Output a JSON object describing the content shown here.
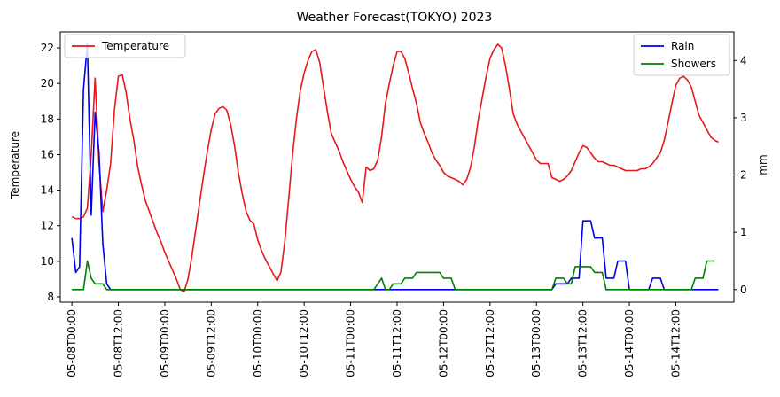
{
  "chart_data": {
    "type": "line",
    "title": "Weather Forecast(TOKYO) 2023",
    "xlabel": "",
    "ylabel_left": "Temperature",
    "ylabel_right": "mm",
    "x_ticks": [
      "05-08T00:00",
      "05-08T12:00",
      "05-09T00:00",
      "05-09T12:00",
      "05-10T00:00",
      "05-10T12:00",
      "05-11T00:00",
      "05-11T12:00",
      "05-12T00:00",
      "05-12T12:00",
      "05-13T00:00",
      "05-13T12:00",
      "05-14T00:00",
      "05-14T12:00"
    ],
    "x_tick_hours": [
      0,
      12,
      24,
      36,
      48,
      60,
      72,
      84,
      96,
      108,
      120,
      132,
      144,
      156
    ],
    "x_range_hours": [
      -3,
      171
    ],
    "left_axis": {
      "ylim": [
        7.7,
        22.9
      ],
      "ticks": [
        8,
        10,
        12,
        14,
        16,
        18,
        20,
        22
      ]
    },
    "right_axis": {
      "ylim": [
        -0.22,
        4.5
      ],
      "ticks": [
        0,
        1,
        2,
        3,
        4
      ]
    },
    "legend_left": {
      "placement": "upper-left",
      "entries": [
        "Temperature"
      ]
    },
    "legend_right": {
      "placement": "upper-right",
      "entries": [
        "Rain",
        "Showers"
      ]
    },
    "grid": false,
    "series": [
      {
        "name": "Temperature",
        "axis": "left",
        "color": "#e41a1c",
        "points": [
          [
            0,
            12.5
          ],
          [
            1,
            12.4
          ],
          [
            2,
            12.4
          ],
          [
            3,
            12.5
          ],
          [
            4,
            13.0
          ],
          [
            5,
            16.0
          ],
          [
            6,
            20.3
          ],
          [
            6.5,
            18.0
          ],
          [
            7,
            15.5
          ],
          [
            8,
            12.8
          ],
          [
            9,
            14.0
          ],
          [
            10,
            15.5
          ],
          [
            11,
            18.5
          ],
          [
            12,
            20.4
          ],
          [
            13,
            20.5
          ],
          [
            14,
            19.5
          ],
          [
            15,
            18.0
          ],
          [
            16,
            16.8
          ],
          [
            17,
            15.3
          ],
          [
            18,
            14.3
          ],
          [
            19,
            13.4
          ],
          [
            20,
            12.8
          ],
          [
            21,
            12.2
          ],
          [
            22,
            11.6
          ],
          [
            23,
            11.1
          ],
          [
            24,
            10.5
          ],
          [
            25,
            10.0
          ],
          [
            26,
            9.5
          ],
          [
            27,
            9.0
          ],
          [
            28,
            8.4
          ],
          [
            29,
            8.3
          ],
          [
            30,
            9.0
          ],
          [
            31,
            10.3
          ],
          [
            32,
            11.8
          ],
          [
            33,
            13.3
          ],
          [
            34,
            14.8
          ],
          [
            35,
            16.2
          ],
          [
            36,
            17.4
          ],
          [
            37,
            18.3
          ],
          [
            38,
            18.6
          ],
          [
            39,
            18.7
          ],
          [
            40,
            18.5
          ],
          [
            41,
            17.7
          ],
          [
            42,
            16.5
          ],
          [
            43,
            15.0
          ],
          [
            44,
            13.8
          ],
          [
            45,
            12.8
          ],
          [
            46,
            12.3
          ],
          [
            47,
            12.1
          ],
          [
            48,
            11.2
          ],
          [
            49,
            10.6
          ],
          [
            50,
            10.1
          ],
          [
            51,
            9.7
          ],
          [
            52,
            9.3
          ],
          [
            53,
            8.9
          ],
          [
            54,
            9.4
          ],
          [
            55,
            11.1
          ],
          [
            56,
            13.5
          ],
          [
            57,
            16.0
          ],
          [
            58,
            18.0
          ],
          [
            59,
            19.6
          ],
          [
            60,
            20.6
          ],
          [
            61,
            21.3
          ],
          [
            62,
            21.8
          ],
          [
            63,
            21.9
          ],
          [
            64,
            21.2
          ],
          [
            65,
            19.8
          ],
          [
            66,
            18.4
          ],
          [
            67,
            17.2
          ],
          [
            68,
            16.7
          ],
          [
            69,
            16.2
          ],
          [
            70,
            15.6
          ],
          [
            71,
            15.1
          ],
          [
            72,
            14.6
          ],
          [
            73,
            14.2
          ],
          [
            74,
            13.9
          ],
          [
            75,
            13.3
          ],
          [
            76,
            15.3
          ],
          [
            77,
            15.1
          ],
          [
            78,
            15.2
          ],
          [
            79,
            15.7
          ],
          [
            80,
            17.0
          ],
          [
            81,
            18.9
          ],
          [
            82,
            20.0
          ],
          [
            83,
            21.0
          ],
          [
            84,
            21.8
          ],
          [
            85,
            21.8
          ],
          [
            86,
            21.4
          ],
          [
            87,
            20.6
          ],
          [
            88,
            19.7
          ],
          [
            89,
            18.9
          ],
          [
            90,
            17.8
          ],
          [
            91,
            17.2
          ],
          [
            92,
            16.7
          ],
          [
            93,
            16.1
          ],
          [
            94,
            15.7
          ],
          [
            95,
            15.4
          ],
          [
            96,
            15.0
          ],
          [
            97,
            14.8
          ],
          [
            98,
            14.7
          ],
          [
            99,
            14.6
          ],
          [
            100,
            14.5
          ],
          [
            101,
            14.3
          ],
          [
            102,
            14.6
          ],
          [
            103,
            15.3
          ],
          [
            104,
            16.5
          ],
          [
            105,
            18.0
          ],
          [
            106,
            19.2
          ],
          [
            107,
            20.4
          ],
          [
            108,
            21.4
          ],
          [
            109,
            21.9
          ],
          [
            110,
            22.2
          ],
          [
            111,
            22.0
          ],
          [
            112,
            21.0
          ],
          [
            113,
            19.7
          ],
          [
            114,
            18.3
          ],
          [
            115,
            17.7
          ],
          [
            116,
            17.3
          ],
          [
            117,
            16.9
          ],
          [
            118,
            16.5
          ],
          [
            119,
            16.1
          ],
          [
            120,
            15.7
          ],
          [
            121,
            15.5
          ],
          [
            122,
            15.5
          ],
          [
            123,
            15.5
          ],
          [
            124,
            14.7
          ],
          [
            125,
            14.6
          ],
          [
            126,
            14.5
          ],
          [
            127,
            14.6
          ],
          [
            128,
            14.8
          ],
          [
            129,
            15.1
          ],
          [
            130,
            15.6
          ],
          [
            131,
            16.1
          ],
          [
            132,
            16.5
          ],
          [
            133,
            16.4
          ],
          [
            134,
            16.1
          ],
          [
            135,
            15.8
          ],
          [
            136,
            15.6
          ],
          [
            137,
            15.6
          ],
          [
            138,
            15.5
          ],
          [
            139,
            15.4
          ],
          [
            140,
            15.4
          ],
          [
            141,
            15.3
          ],
          [
            142,
            15.2
          ],
          [
            143,
            15.1
          ],
          [
            144,
            15.1
          ],
          [
            145,
            15.1
          ],
          [
            146,
            15.1
          ],
          [
            147,
            15.2
          ],
          [
            148,
            15.2
          ],
          [
            149,
            15.3
          ],
          [
            150,
            15.5
          ],
          [
            151,
            15.8
          ],
          [
            152,
            16.1
          ],
          [
            153,
            16.8
          ],
          [
            154,
            17.8
          ],
          [
            155,
            18.9
          ],
          [
            156,
            19.9
          ],
          [
            157,
            20.3
          ],
          [
            158,
            20.4
          ],
          [
            159,
            20.2
          ],
          [
            160,
            19.8
          ],
          [
            161,
            19.0
          ],
          [
            162,
            18.2
          ],
          [
            163,
            17.8
          ],
          [
            164,
            17.4
          ],
          [
            165,
            17.0
          ],
          [
            166,
            16.8
          ],
          [
            167,
            16.7
          ]
        ]
      },
      {
        "name": "Rain",
        "axis": "right",
        "color": "#0000ee",
        "points": [
          [
            0,
            0.9
          ],
          [
            1,
            0.3
          ],
          [
            2,
            0.4
          ],
          [
            3,
            3.5
          ],
          [
            4,
            4.3
          ],
          [
            5,
            1.3
          ],
          [
            6,
            3.1
          ],
          [
            7,
            2.4
          ],
          [
            8,
            0.8
          ],
          [
            9,
            0.1
          ],
          [
            10,
            0.0
          ],
          [
            11,
            0.0
          ],
          [
            12,
            0.0
          ],
          [
            14,
            0.0
          ],
          [
            24,
            0.0
          ],
          [
            36,
            0.0
          ],
          [
            48,
            0.0
          ],
          [
            60,
            0.0
          ],
          [
            72,
            0.0
          ],
          [
            84,
            0.0
          ],
          [
            96,
            0.0
          ],
          [
            108,
            0.0
          ],
          [
            120,
            0.0
          ],
          [
            124,
            0.0
          ],
          [
            125,
            0.1
          ],
          [
            126,
            0.1
          ],
          [
            127,
            0.1
          ],
          [
            128,
            0.1
          ],
          [
            129,
            0.2
          ],
          [
            130,
            0.2
          ],
          [
            131,
            0.2
          ],
          [
            132,
            1.2
          ],
          [
            133,
            1.2
          ],
          [
            134,
            1.2
          ],
          [
            135,
            0.9
          ],
          [
            136,
            0.9
          ],
          [
            137,
            0.9
          ],
          [
            138,
            0.2
          ],
          [
            139,
            0.2
          ],
          [
            140,
            0.2
          ],
          [
            141,
            0.5
          ],
          [
            142,
            0.5
          ],
          [
            143,
            0.5
          ],
          [
            144,
            0.0
          ],
          [
            145,
            0.0
          ],
          [
            146,
            0.0
          ],
          [
            147,
            0.0
          ],
          [
            148,
            0.0
          ],
          [
            149,
            0.0
          ],
          [
            150,
            0.2
          ],
          [
            151,
            0.2
          ],
          [
            152,
            0.2
          ],
          [
            153,
            0.0
          ],
          [
            154,
            0.0
          ],
          [
            160,
            0.0
          ],
          [
            167,
            0.0
          ]
        ]
      },
      {
        "name": "Showers",
        "axis": "right",
        "color": "#008000",
        "points": [
          [
            0,
            0.0
          ],
          [
            1,
            0.0
          ],
          [
            2,
            0.0
          ],
          [
            3,
            0.0
          ],
          [
            4,
            0.5
          ],
          [
            5,
            0.2
          ],
          [
            6,
            0.1
          ],
          [
            7,
            0.1
          ],
          [
            8,
            0.1
          ],
          [
            9,
            0.0
          ],
          [
            10,
            0.0
          ],
          [
            24,
            0.0
          ],
          [
            48,
            0.0
          ],
          [
            72,
            0.0
          ],
          [
            78,
            0.0
          ],
          [
            79,
            0.1
          ],
          [
            80,
            0.2
          ],
          [
            81,
            0.0
          ],
          [
            82,
            0.0
          ],
          [
            83,
            0.1
          ],
          [
            84,
            0.1
          ],
          [
            85,
            0.1
          ],
          [
            86,
            0.2
          ],
          [
            87,
            0.2
          ],
          [
            88,
            0.2
          ],
          [
            89,
            0.3
          ],
          [
            90,
            0.3
          ],
          [
            91,
            0.3
          ],
          [
            92,
            0.3
          ],
          [
            93,
            0.3
          ],
          [
            94,
            0.3
          ],
          [
            95,
            0.3
          ],
          [
            96,
            0.2
          ],
          [
            97,
            0.2
          ],
          [
            98,
            0.2
          ],
          [
            99,
            0.0
          ],
          [
            100,
            0.0
          ],
          [
            108,
            0.0
          ],
          [
            120,
            0.0
          ],
          [
            124,
            0.0
          ],
          [
            125,
            0.2
          ],
          [
            126,
            0.2
          ],
          [
            127,
            0.2
          ],
          [
            128,
            0.1
          ],
          [
            129,
            0.1
          ],
          [
            130,
            0.4
          ],
          [
            131,
            0.4
          ],
          [
            132,
            0.4
          ],
          [
            133,
            0.4
          ],
          [
            134,
            0.4
          ],
          [
            135,
            0.3
          ],
          [
            136,
            0.3
          ],
          [
            137,
            0.3
          ],
          [
            138,
            0.0
          ],
          [
            139,
            0.0
          ],
          [
            144,
            0.0
          ],
          [
            150,
            0.0
          ],
          [
            156,
            0.0
          ],
          [
            160,
            0.0
          ],
          [
            161,
            0.2
          ],
          [
            162,
            0.2
          ],
          [
            163,
            0.2
          ],
          [
            164,
            0.5
          ],
          [
            165,
            0.5
          ],
          [
            166,
            0.5
          ]
        ]
      }
    ]
  }
}
